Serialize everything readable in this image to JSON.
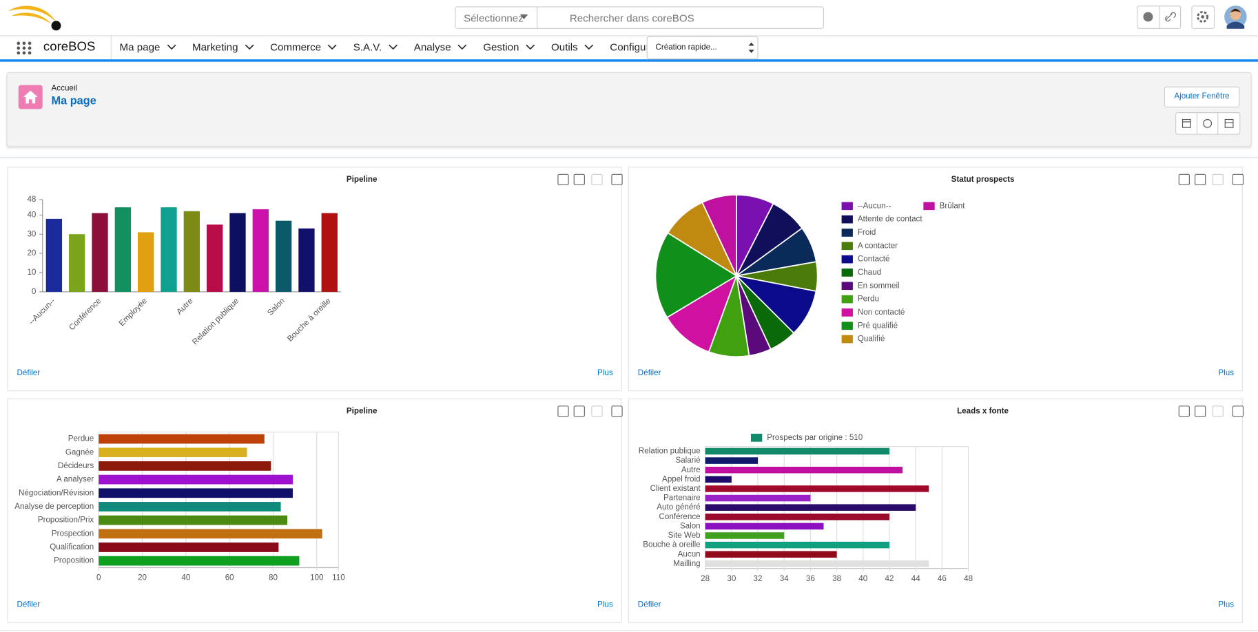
{
  "header": {
    "search_scope": "Sélectionnez",
    "search_placeholder": "Rechercher dans coreBOS"
  },
  "nav": {
    "app": "coreBOS",
    "items": [
      "Ma page",
      "Marketing",
      "Commerce",
      "S.A.V.",
      "Analyse",
      "Gestion",
      "Outils",
      "Configuration"
    ],
    "quick_create": "Création rapide..."
  },
  "page_header": {
    "breadcrumb": "Accueil",
    "title": "Ma page",
    "add_button": "Ajouter Fenêtre"
  },
  "widget_links": {
    "scroll": "Défiler",
    "more": "Plus"
  },
  "chart_data": [
    {
      "type": "bar",
      "title": "Pipeline",
      "categories": [
        "--Aucun--",
        null,
        "Conférence",
        null,
        "Employée",
        null,
        "Autre",
        null,
        "Relation publique",
        null,
        "Salon",
        null,
        "Bouche à oreille"
      ],
      "values": [
        38,
        30,
        41,
        44,
        31,
        44,
        42,
        35,
        41,
        43,
        37,
        33,
        41
      ],
      "colors": [
        "#1a2a9a",
        "#7aa51a",
        "#8b0f3a",
        "#129060",
        "#e0a010",
        "#10a090",
        "#7d8a14",
        "#b80c4a",
        "#0d1060",
        "#cc10aa",
        "#0b5a6a",
        "#12106a",
        "#b01010"
      ],
      "ylim": [
        0,
        48
      ],
      "yticks": [
        0,
        10,
        20,
        30,
        40,
        48
      ],
      "grid": false
    },
    {
      "type": "pie",
      "title": "Statut prospects",
      "categories": [
        "--Aucun--",
        "Attente de contact",
        "Froid",
        "A contacter",
        "Contacté",
        "Chaud",
        "En sommeil",
        "Perdu",
        "Non contacté",
        "Pré qualifié",
        "Qualifié",
        "Brûlant"
      ],
      "values": [
        27,
        27,
        26,
        21,
        34,
        20,
        16,
        29,
        39,
        63,
        33,
        25
      ],
      "colors": [
        "#7a10b0",
        "#10105a",
        "#0a2a5a",
        "#4a7a0a",
        "#0a0a8a",
        "#0a6a0a",
        "#5a0a7a",
        "#40a010",
        "#d010a0",
        "#10901a",
        "#c08a10",
        "#c010a0"
      ],
      "legend": "right"
    },
    {
      "type": "barh",
      "title": "Pipeline",
      "categories": [
        "Perdue",
        "Gagnée",
        "Décideurs",
        "A analyser",
        "Négociation/Révision",
        "Analyse de perception",
        "Proposition/Prix",
        "Prospection",
        "Qualification",
        "Proposition"
      ],
      "values": [
        76,
        68,
        79,
        89,
        89,
        83.5,
        86.5,
        102.5,
        82.5,
        92
      ],
      "colors": [
        "#c0400a",
        "#d9b020",
        "#8b1a0a",
        "#a010d0",
        "#10106a",
        "#108a7a",
        "#4a8a10",
        "#c07010",
        "#8b0a1a",
        "#10a020"
      ],
      "xlim": [
        0,
        110
      ],
      "xticks": [
        0,
        20,
        40,
        60,
        80,
        100,
        110
      ],
      "grid": true
    },
    {
      "type": "barh",
      "title": "Leads x fonte",
      "categories": [
        "Relation publique",
        "Salarié",
        "Autre",
        "Appel froid",
        "Client existant",
        "Partenaire",
        "Auto généré",
        "Conférence",
        "Salon",
        "Site Web",
        "Bouche à oreille",
        "Aucun",
        "Mailling"
      ],
      "series": [
        {
          "name": "Prospects par origine : 510",
          "color": "#108a6a",
          "values": [
            42,
            32,
            43,
            30,
            45,
            36,
            44,
            42,
            37,
            34,
            42,
            38,
            45
          ]
        }
      ],
      "colors": [
        "#108a6a",
        "#101a6a",
        "#c010a0",
        "#200a6a",
        "#a00a2a",
        "#9a20c8",
        "#2a0a6a",
        "#9a0a2a",
        "#8a10c0",
        "#40a020",
        "#10a080",
        "#900a1a",
        "#e0e0e0"
      ],
      "xlim": [
        28,
        48
      ],
      "xticks": [
        28,
        30,
        32,
        34,
        36,
        38,
        40,
        42,
        44,
        46,
        48
      ],
      "grid": true,
      "legend": "top"
    }
  ]
}
